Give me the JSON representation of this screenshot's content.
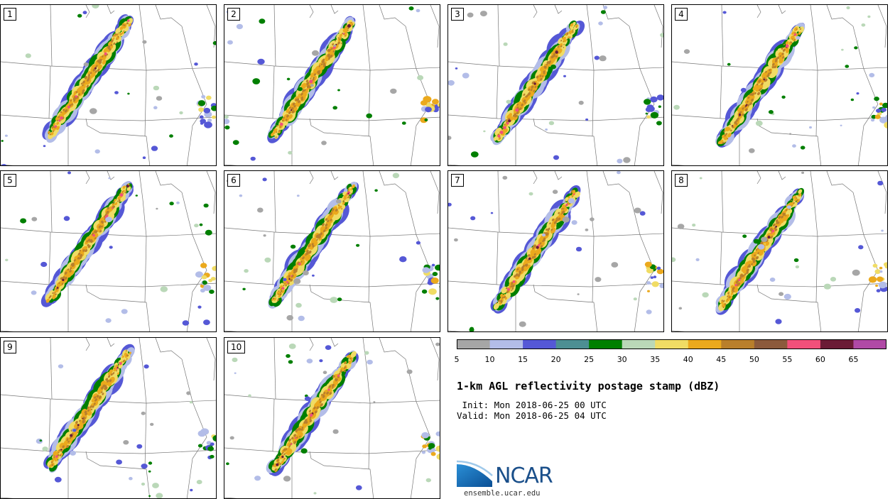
{
  "panels": [
    {
      "label": "1",
      "seed": 11
    },
    {
      "label": "2",
      "seed": 23
    },
    {
      "label": "3",
      "seed": 37
    },
    {
      "label": "4",
      "seed": 41
    },
    {
      "label": "5",
      "seed": 53
    },
    {
      "label": "6",
      "seed": 67
    },
    {
      "label": "7",
      "seed": 71
    },
    {
      "label": "8",
      "seed": 83
    },
    {
      "label": "9",
      "seed": 97
    },
    {
      "label": "10",
      "seed": 101
    }
  ],
  "colorbar": {
    "levels": [
      5,
      10,
      15,
      20,
      25,
      30,
      35,
      40,
      45,
      50,
      55,
      60,
      65
    ],
    "tick_labels": [
      "5",
      "10",
      "15",
      "20",
      "25",
      "30",
      "35",
      "40",
      "45",
      "50",
      "55",
      "60",
      "65"
    ],
    "colors": [
      "#a6a6a6",
      "#b3bde8",
      "#5558d6",
      "#4d8f93",
      "#007f00",
      "#bad8b8",
      "#f0dc64",
      "#eba91d",
      "#b97f2b",
      "#8c5a3c",
      "#f2507a",
      "#6b1c36",
      "#b04aa6"
    ]
  },
  "title": "1-km AGL reflectivity postage stamp (dBZ)",
  "init": " Init: Mon 2018-06-25 00 UTC",
  "valid": "Valid: Mon 2018-06-25 04 UTC",
  "logo": {
    "text": "NCAR",
    "url": "ensemble.ucar.edu"
  }
}
